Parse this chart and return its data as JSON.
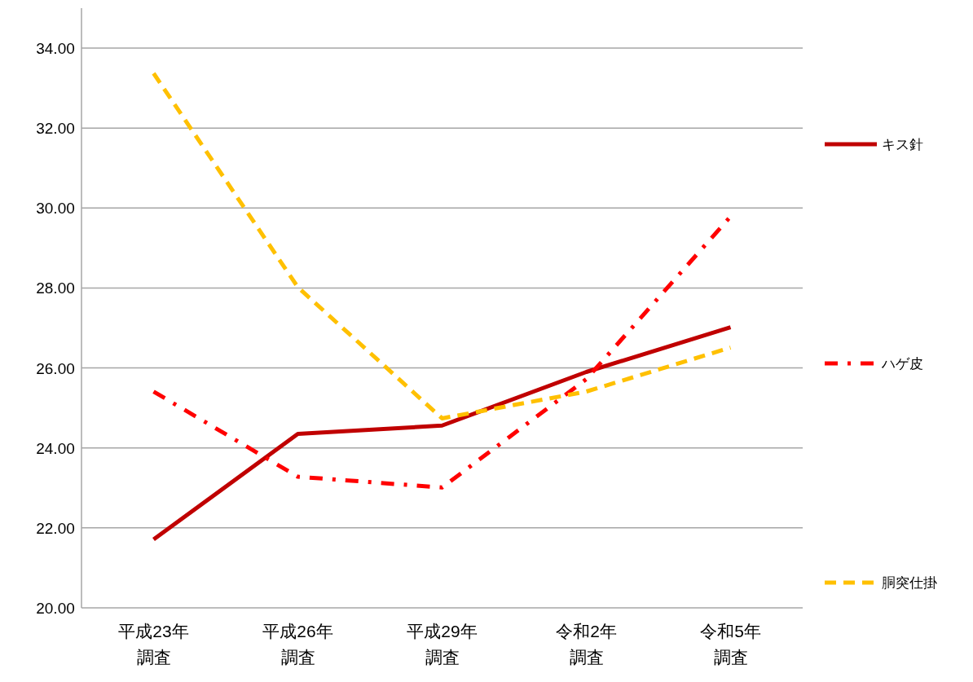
{
  "chart_data": {
    "type": "line",
    "categories": [
      "平成23年調査",
      "平成26年調査",
      "平成29年調査",
      "令和2年調査",
      "令和5年調査"
    ],
    "series": [
      {
        "name": "キス針",
        "color": "#c00000",
        "line_style": "solid",
        "values": [
          21.71,
          24.35,
          24.56,
          25.9,
          27.02
        ]
      },
      {
        "name": "ハゲ皮",
        "color": "#ff0000",
        "line_style": "dashdot",
        "values": [
          25.41,
          23.28,
          23.01,
          25.72,
          29.79
        ]
      },
      {
        "name": "胴突仕掛",
        "color": "#ffc000",
        "line_style": "dashed",
        "values": [
          33.37,
          28.02,
          24.74,
          25.41,
          26.51
        ]
      }
    ],
    "ylim": [
      20,
      35
    ],
    "yticks": [
      {
        "value": 20,
        "label": "20.00"
      },
      {
        "value": 22,
        "label": "22.00"
      },
      {
        "value": 24,
        "label": "24.00"
      },
      {
        "value": 26,
        "label": "26.00"
      },
      {
        "value": 28,
        "label": "28.00"
      },
      {
        "value": 30,
        "label": "30.00"
      },
      {
        "value": 32,
        "label": "32.00"
      },
      {
        "value": 34,
        "label": "34.00"
      }
    ],
    "grid": "y",
    "legend": "right",
    "marker": "none"
  }
}
